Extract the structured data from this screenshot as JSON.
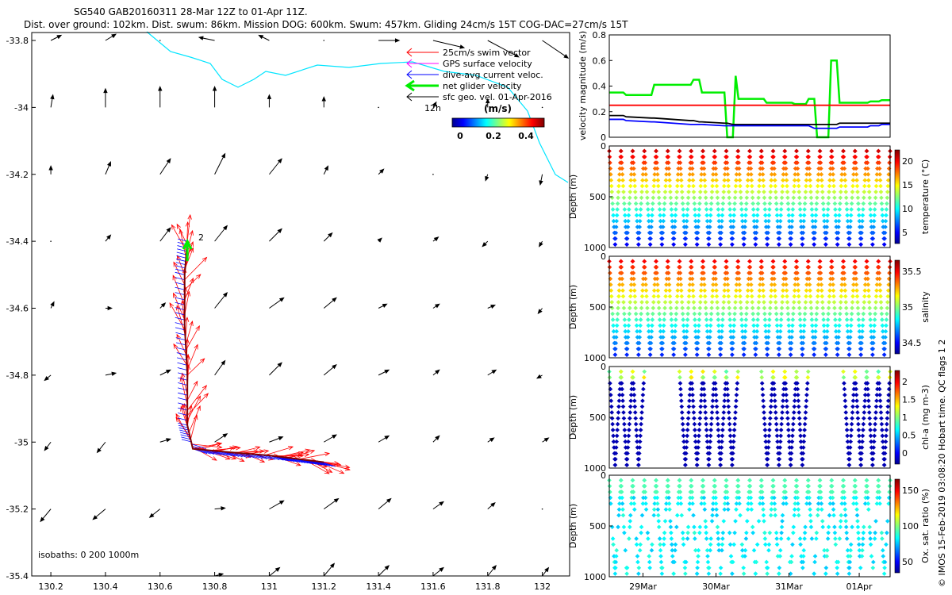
{
  "header": {
    "line1": "SG540 GAB20160311 28-Mar 12Z to 01-Apr 11Z.",
    "line2": "Dist. over ground: 102km. Dist. swum: 86km. Mission DOG: 600km. Swum: 457km. Gliding 24cm/s 15T COG-DAC=27cm/s 15T"
  },
  "credit": "© IMOS 15-Feb-2019 03:08:20 Hobart time. QC flags 1  2",
  "colors": {
    "swim": "#ff0000",
    "gps": "#ff00ff",
    "dac": "#0000ff",
    "net": "#00ee00",
    "geo": "#000000",
    "coast": "#00e5ff"
  },
  "map": {
    "legend": [
      {
        "label": "25cm/s swim vector"
      },
      {
        "label": "GPS surface velocity"
      },
      {
        "label": "dive-avg current veloc."
      },
      {
        "label": "net glider velocity"
      },
      {
        "label": "sfc geo. vel. 01-Apr-2016"
      }
    ],
    "colorbar_title": "(m/s)",
    "colorbar_ticks": [
      "0",
      "0.2",
      "0.4"
    ],
    "label_12h": "12h",
    "label_2": "2",
    "isobaths": "isobaths: 0   200  1000m"
  },
  "chart_data": [
    {
      "type": "scatter",
      "panel": "map",
      "x_ticks": [
        "130.2",
        "130.4",
        "130.6",
        "130.8",
        "131",
        "131.2",
        "131.4",
        "131.6",
        "131.8",
        "132"
      ],
      "y_ticks": [
        "-33.8",
        "-34",
        "-34.2",
        "-34.4",
        "-34.6",
        "-34.8",
        "-35",
        "-35.2",
        "-35.4"
      ],
      "xlim": [
        130.13,
        132.1
      ],
      "ylim": [
        -35.4,
        -33.8
      ],
      "track": [
        [
          130.7,
          -34.4
        ],
        [
          130.69,
          -34.5
        ],
        [
          130.69,
          -34.65
        ],
        [
          130.7,
          -34.8
        ],
        [
          130.7,
          -34.95
        ],
        [
          130.72,
          -35.02
        ],
        [
          130.85,
          -35.03
        ],
        [
          131.0,
          -35.04
        ],
        [
          131.1,
          -35.05
        ],
        [
          131.2,
          -35.06
        ]
      ],
      "geo_vectors": [
        [
          130.2,
          -33.8,
          0.1,
          0.05
        ],
        [
          130.4,
          -33.8,
          0.1,
          0.06
        ],
        [
          130.6,
          -33.8,
          0,
          0
        ],
        [
          130.8,
          -33.8,
          -0.15,
          0.03
        ],
        [
          131,
          -33.8,
          -0.1,
          0.05
        ],
        [
          131.2,
          -33.8,
          0,
          0
        ],
        [
          131.4,
          -33.8,
          0.2,
          0
        ],
        [
          131.6,
          -33.8,
          0.3,
          -0.07
        ],
        [
          131.8,
          -33.8,
          0.3,
          -0.16
        ],
        [
          132,
          -33.8,
          0.25,
          -0.17
        ],
        [
          130.2,
          -34,
          0.02,
          0.12
        ],
        [
          130.4,
          -34,
          0,
          0.18
        ],
        [
          130.6,
          -34,
          0,
          0.2
        ],
        [
          130.8,
          -34,
          0,
          0.2
        ],
        [
          131,
          -34,
          0,
          0.12
        ],
        [
          131.2,
          -34,
          0,
          0.1
        ],
        [
          131.4,
          -34,
          0,
          0
        ],
        [
          131.6,
          -34,
          0.03,
          0.05
        ],
        [
          131.8,
          -34,
          0,
          0.08
        ],
        [
          132,
          -34,
          0,
          0
        ],
        [
          130.2,
          -34.2,
          0,
          0.08
        ],
        [
          130.4,
          -34.2,
          0.05,
          0.12
        ],
        [
          130.6,
          -34.2,
          0.1,
          0.15
        ],
        [
          130.8,
          -34.2,
          0.1,
          0.2
        ],
        [
          131,
          -34.2,
          0.12,
          0.15
        ],
        [
          131.2,
          -34.2,
          0.04,
          0.08
        ],
        [
          131.4,
          -34.2,
          0.05,
          0.05
        ],
        [
          131.6,
          -34.2,
          0,
          0
        ],
        [
          131.8,
          -34.2,
          -0.02,
          -0.06
        ],
        [
          132,
          -34.2,
          -0.02,
          -0.1
        ],
        [
          130.2,
          -34.4,
          0,
          0
        ],
        [
          130.4,
          -34.4,
          0.05,
          0.06
        ],
        [
          130.6,
          -34.4,
          0.1,
          0.13
        ],
        [
          130.8,
          -34.4,
          0.12,
          0.15
        ],
        [
          131,
          -34.4,
          0.12,
          0.12
        ],
        [
          131.2,
          -34.4,
          0.08,
          0.08
        ],
        [
          131.4,
          -34.4,
          0.03,
          0.03
        ],
        [
          131.6,
          -34.4,
          0.05,
          0.04
        ],
        [
          131.8,
          -34.4,
          -0.05,
          -0.05
        ],
        [
          132,
          -34.4,
          -0.03,
          -0.05
        ],
        [
          130.2,
          -34.6,
          0.03,
          0.06
        ],
        [
          130.4,
          -34.6,
          0.06,
          0
        ],
        [
          130.6,
          -34.6,
          0.05,
          0.05
        ],
        [
          130.8,
          -34.6,
          0.12,
          0.15
        ],
        [
          131,
          -34.6,
          0.14,
          0.1
        ],
        [
          131.2,
          -34.6,
          0.12,
          0.1
        ],
        [
          131.4,
          -34.6,
          0.08,
          0.04
        ],
        [
          131.6,
          -34.6,
          0.06,
          0.04
        ],
        [
          131.8,
          -34.6,
          0.07,
          0.03
        ],
        [
          132,
          -34.6,
          -0.04,
          -0.05
        ],
        [
          130.2,
          -34.8,
          -0.06,
          -0.05
        ],
        [
          130.4,
          -34.8,
          0.1,
          0.02
        ],
        [
          130.6,
          -34.8,
          0.1,
          0.05
        ],
        [
          130.8,
          -34.8,
          0.1,
          0.14
        ],
        [
          131,
          -34.8,
          0.12,
          0.12
        ],
        [
          131.2,
          -34.8,
          0.12,
          0.1
        ],
        [
          131.4,
          -34.8,
          0.1,
          0.05
        ],
        [
          131.6,
          -34.8,
          0.06,
          0.05
        ],
        [
          131.8,
          -34.8,
          0.08,
          0.05
        ],
        [
          132,
          -34.8,
          -0.05,
          -0.03
        ],
        [
          130.2,
          -35,
          -0.06,
          -0.08
        ],
        [
          130.4,
          -35,
          -0.08,
          -0.1
        ],
        [
          130.6,
          -35,
          0.1,
          0.03
        ],
        [
          130.8,
          -35,
          0.12,
          0.08
        ],
        [
          131,
          -35,
          0.13,
          0.05
        ],
        [
          131.2,
          -35,
          0.12,
          0.07
        ],
        [
          131.4,
          -35,
          0.1,
          0.06
        ],
        [
          131.6,
          -35,
          0.06,
          0.06
        ],
        [
          131.8,
          -35,
          0.06,
          0.04
        ],
        [
          132,
          -35,
          0.06,
          0.04
        ],
        [
          130.2,
          -35.2,
          -0.1,
          -0.12
        ],
        [
          130.4,
          -35.2,
          -0.12,
          -0.1
        ],
        [
          130.6,
          -35.2,
          -0.1,
          -0.08
        ],
        [
          130.8,
          -35.2,
          0.1,
          0.01
        ],
        [
          131,
          -35.2,
          0.14,
          0.08
        ],
        [
          131.2,
          -35.2,
          0.14,
          0.1
        ],
        [
          131.4,
          -35.2,
          0.12,
          0.1
        ],
        [
          131.6,
          -35.2,
          0.1,
          0.07
        ],
        [
          131.8,
          -35.2,
          0.07,
          0.06
        ],
        [
          132,
          -35.2,
          0,
          0
        ],
        [
          130.2,
          -35.4,
          0,
          0
        ],
        [
          130.4,
          -35.4,
          0,
          0
        ],
        [
          130.6,
          -35.4,
          0,
          0
        ],
        [
          130.8,
          -35.4,
          0.08,
          0.02
        ],
        [
          131,
          -35.4,
          0.1,
          0.08
        ],
        [
          131.2,
          -35.4,
          0.1,
          0.12
        ],
        [
          131.4,
          -35.4,
          0.1,
          0.1
        ],
        [
          131.6,
          -35.4,
          0.1,
          0.08
        ],
        [
          131.8,
          -35.4,
          0.08,
          0.1
        ],
        [
          132,
          -35.4,
          0.06,
          0.08
        ]
      ]
    },
    {
      "type": "line",
      "panel": "velocity",
      "ylabel": "velocity magnitude (m/s)",
      "ylim": [
        0,
        0.8
      ],
      "y_ticks": [
        "0",
        "0.2",
        "0.4",
        "0.6",
        "0.8"
      ],
      "x": [
        0,
        0.05,
        0.06,
        0.15,
        0.16,
        0.29,
        0.3,
        0.32,
        0.33,
        0.41,
        0.42,
        0.44,
        0.45,
        0.46,
        0.47,
        0.55,
        0.56,
        0.65,
        0.66,
        0.7,
        0.71,
        0.73,
        0.74,
        0.78,
        0.79,
        0.81,
        0.82,
        0.92,
        0.93,
        0.96,
        0.97,
        1.0
      ],
      "series": [
        {
          "color": "#00ee00",
          "values": [
            0.35,
            0.35,
            0.33,
            0.33,
            0.41,
            0.41,
            0.45,
            0.45,
            0.35,
            0.35,
            0,
            0,
            0.48,
            0.3,
            0.3,
            0.3,
            0.27,
            0.27,
            0.26,
            0.26,
            0.3,
            0.3,
            0,
            0,
            0.6,
            0.6,
            0.27,
            0.27,
            0.28,
            0.28,
            0.29,
            0.29
          ]
        },
        {
          "color": "#ff0000",
          "values": [
            0.25,
            0.25,
            0.25,
            0.25,
            0.25,
            0.25,
            0.25,
            0.25,
            0.25,
            0.25,
            0.25,
            0.25,
            0.25,
            0.25,
            0.25,
            0.25,
            0.25,
            0.25,
            0.25,
            0.25,
            0.25,
            0.25,
            0.25,
            0.25,
            0.25,
            0.25,
            0.25,
            0.25,
            0.25,
            0.25,
            0.25,
            0.25
          ]
        },
        {
          "color": "#000000",
          "values": [
            0.17,
            0.17,
            0.16,
            0.15,
            0.15,
            0.13,
            0.13,
            0.12,
            0.12,
            0.11,
            0.11,
            0.1,
            0.1,
            0.1,
            0.1,
            0.1,
            0.1,
            0.1,
            0.1,
            0.1,
            0.1,
            0.1,
            0.1,
            0.1,
            0.1,
            0.1,
            0.11,
            0.11,
            0.11,
            0.11,
            0.11,
            0.11
          ]
        },
        {
          "color": "#0000ff",
          "values": [
            0.14,
            0.14,
            0.13,
            0.12,
            0.12,
            0.1,
            0.1,
            0.1,
            0.1,
            0.09,
            0.09,
            0.09,
            0.09,
            0.09,
            0.09,
            0.09,
            0.09,
            0.09,
            0.09,
            0.09,
            0.09,
            0.07,
            0.07,
            0.07,
            0.07,
            0.07,
            0.08,
            0.08,
            0.09,
            0.09,
            0.1,
            0.1
          ]
        }
      ]
    },
    {
      "type": "scatter",
      "panel": "temperature",
      "ylabel": "Depth (m)",
      "y_ticks": [
        "0",
        "500",
        "1000"
      ],
      "colorbar_label": "temperature (°C)",
      "colorbar_ticks": [
        "5",
        "10",
        "15",
        "20"
      ],
      "n_dives": 24,
      "gaps": []
    },
    {
      "type": "scatter",
      "panel": "salinity",
      "ylabel": "Depth (m)",
      "y_ticks": [
        "0",
        "500",
        "1000"
      ],
      "colorbar_label": "salinity",
      "colorbar_ticks": [
        "34.5",
        "35",
        "35.5"
      ],
      "n_dives": 24,
      "gaps": []
    },
    {
      "type": "scatter",
      "panel": "chla",
      "ylabel": "Depth (m)",
      "y_ticks": [
        "0",
        "500",
        "1000"
      ],
      "colorbar_label": "chl-a (mg m-3)",
      "colorbar_ticks": [
        "0",
        "0.5",
        "1",
        "1.5",
        "2"
      ],
      "n_dives": 24,
      "gaps": [
        3,
        4,
        5,
        11,
        12,
        17,
        18,
        19
      ]
    },
    {
      "type": "scatter",
      "panel": "oxygen",
      "ylabel": "Depth (m)",
      "y_ticks": [
        "0",
        "500",
        "1000"
      ],
      "colorbar_label": "Ox. sat. ratio (%)",
      "colorbar_ticks": [
        "50",
        "100",
        "150"
      ],
      "n_dives": 24,
      "gaps": []
    }
  ],
  "time_axis": {
    "ticks": [
      "29Mar",
      "30Mar",
      "31Mar",
      "01Apr"
    ]
  }
}
